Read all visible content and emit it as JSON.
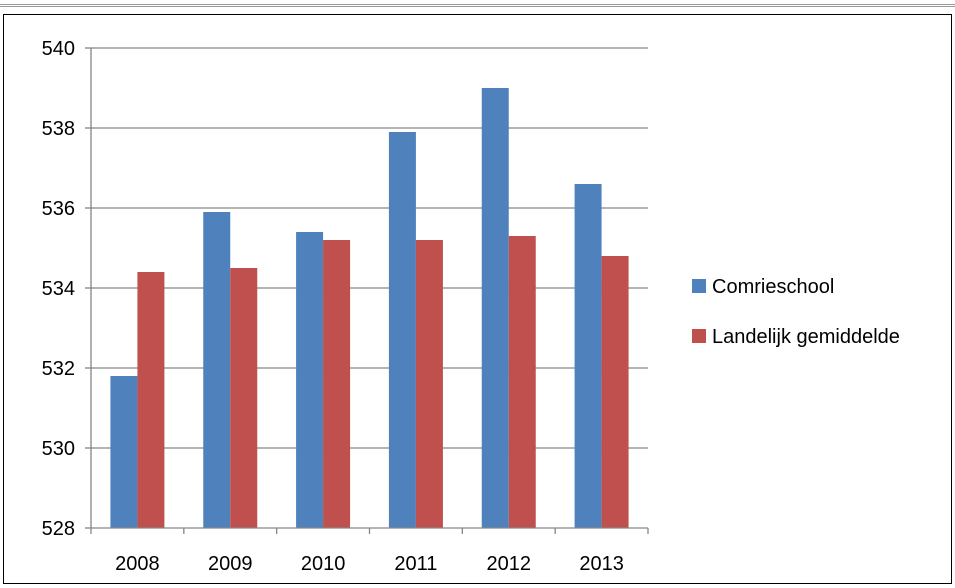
{
  "chart_data": {
    "type": "bar",
    "categories": [
      "2008",
      "2009",
      "2010",
      "2011",
      "2012",
      "2013"
    ],
    "series": [
      {
        "name": "Comrieschool",
        "color": "#4f81bd",
        "values": [
          531.8,
          535.9,
          535.4,
          537.9,
          539.0,
          536.6
        ]
      },
      {
        "name": "Landelijk gemiddelde",
        "color": "#c0504d",
        "values": [
          534.4,
          534.5,
          535.2,
          535.2,
          535.3,
          534.8
        ]
      }
    ],
    "ylim": [
      528,
      540
    ],
    "yticks": [
      "528",
      "530",
      "532",
      "534",
      "536",
      "538",
      "540"
    ],
    "grid": true,
    "legend_position": "right"
  }
}
